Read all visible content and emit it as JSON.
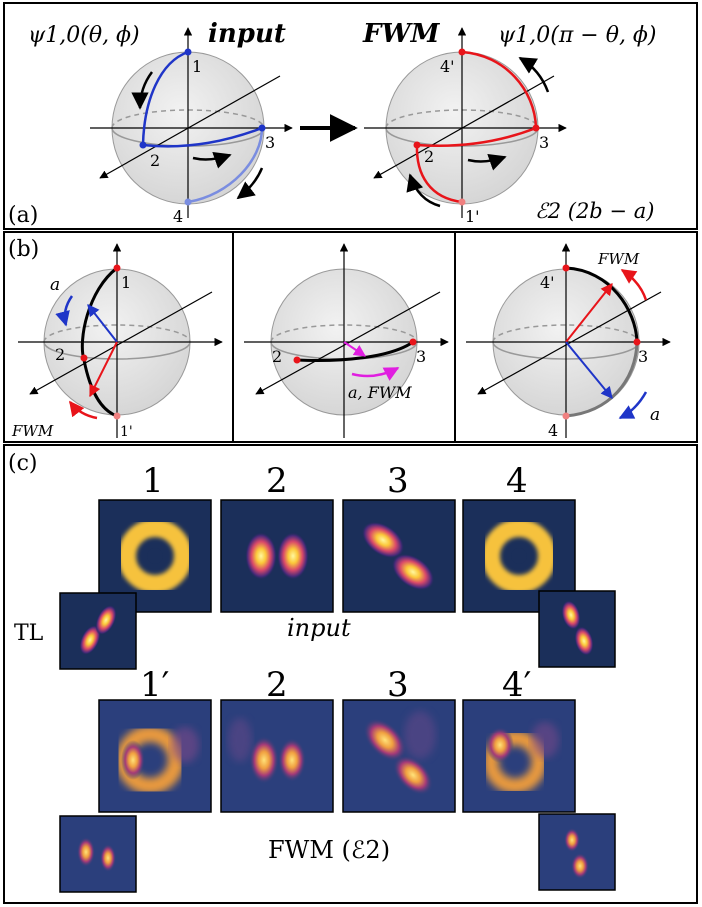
{
  "panel_a": {
    "label": "(a)",
    "left_formula": "ψ1,0(θ, ϕ)",
    "left_title": "input",
    "right_title": "FWM",
    "right_formula": "ψ1,0(π − θ, ϕ)",
    "points_left": [
      "1",
      "2",
      "3",
      "4"
    ],
    "points_right": [
      "4'",
      "2",
      "3",
      "1'"
    ],
    "process": "ℰ2 (2b − a)",
    "colors": {
      "input_path": "#1f35c8",
      "input_path_light": "#7a8de0",
      "fwm_path": "#e8141a"
    }
  },
  "panel_b": {
    "label": "(b)",
    "sub1": {
      "points": [
        "1",
        "2",
        "1'"
      ],
      "label_a": "a",
      "label_fwm": "FWM"
    },
    "sub2": {
      "points": [
        "2",
        "3"
      ],
      "label": "a, FWM"
    },
    "sub3": {
      "points": [
        "4'",
        "3",
        "4"
      ],
      "label_fwm": "FWM",
      "label_a": "a"
    }
  },
  "panel_c": {
    "label": "(c)",
    "input_numbers": [
      "1",
      "2",
      "3",
      "4"
    ],
    "input_caption": "input",
    "tl_label": "TL",
    "fwm_numbers": [
      "1′",
      "2",
      "3",
      "4′"
    ],
    "fwm_caption": "FWM (ℰ2)"
  }
}
